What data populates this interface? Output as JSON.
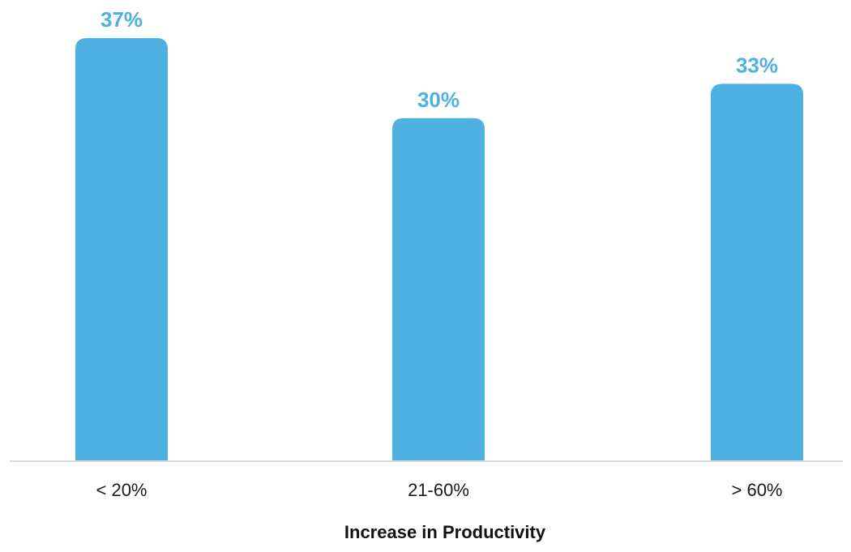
{
  "chart_data": {
    "type": "bar",
    "categories": [
      "< 20%",
      "21-60%",
      "> 60%"
    ],
    "values": [
      37,
      30,
      33
    ],
    "value_labels": [
      "37%",
      "30%",
      "33%"
    ],
    "title": "",
    "xlabel": "Increase in Productivity",
    "ylabel": "",
    "ylim": [
      0,
      37
    ],
    "grid": false,
    "legend": "none",
    "colors": {
      "bar": "#4FB0E2",
      "value_label": "#4FB0E2",
      "axis_line": "#d9d9d9"
    }
  }
}
